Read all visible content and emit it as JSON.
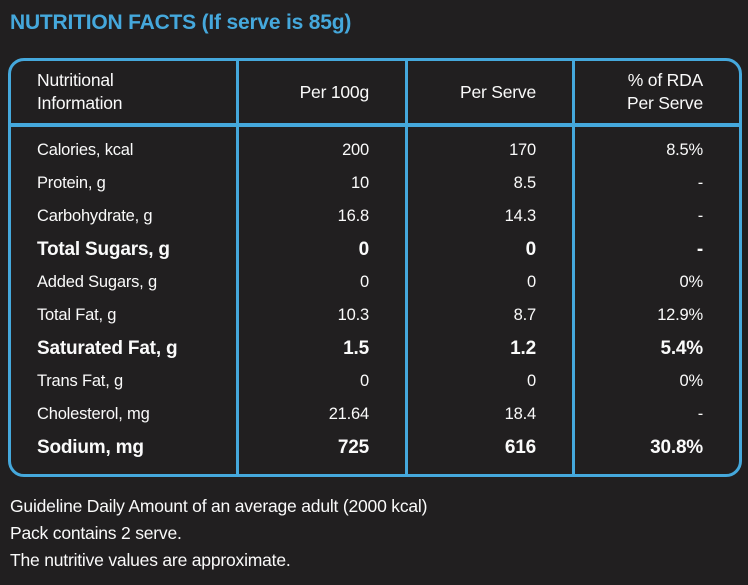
{
  "colors": {
    "accent": "#45A8DC",
    "background": "#211F20",
    "text": "#FAFAFA"
  },
  "title": "NUTRITION FACTS (If serve is 85g)",
  "table": {
    "headers": {
      "nutrient": "Nutritional\nInformation",
      "per_100g": "Per 100g",
      "per_serve": "Per Serve",
      "rda": "% of RDA\nPer Serve"
    },
    "rows": [
      {
        "label": "Calories, kcal",
        "per_100g": "200",
        "per_serve": "170",
        "rda": "8.5%",
        "emphasized": false
      },
      {
        "label": "Protein, g",
        "per_100g": "10",
        "per_serve": "8.5",
        "rda": "-",
        "emphasized": false
      },
      {
        "label": "Carbohydrate, g",
        "per_100g": "16.8",
        "per_serve": "14.3",
        "rda": "-",
        "emphasized": false
      },
      {
        "label": "Total Sugars, g",
        "per_100g": "0",
        "per_serve": "0",
        "rda": "-",
        "emphasized": true
      },
      {
        "label": "Added Sugars, g",
        "per_100g": "0",
        "per_serve": "0",
        "rda": "0%",
        "emphasized": false
      },
      {
        "label": "Total Fat, g",
        "per_100g": "10.3",
        "per_serve": "8.7",
        "rda": "12.9%",
        "emphasized": false
      },
      {
        "label": "Saturated Fat, g",
        "per_100g": "1.5",
        "per_serve": "1.2",
        "rda": "5.4%",
        "emphasized": true
      },
      {
        "label": "Trans Fat, g",
        "per_100g": "0",
        "per_serve": "0",
        "rda": "0%",
        "emphasized": false
      },
      {
        "label": "Cholesterol, mg",
        "per_100g": "21.64",
        "per_serve": "18.4",
        "rda": "-",
        "emphasized": false
      },
      {
        "label": "Sodium, mg",
        "per_100g": "725",
        "per_serve": "616",
        "rda": "30.8%",
        "emphasized": true
      }
    ]
  },
  "footer": {
    "lines": [
      "Guideline Daily Amount of an average adult (2000 kcal)",
      "Pack contains 2 serve.",
      "The nutritive values are approximate."
    ]
  }
}
